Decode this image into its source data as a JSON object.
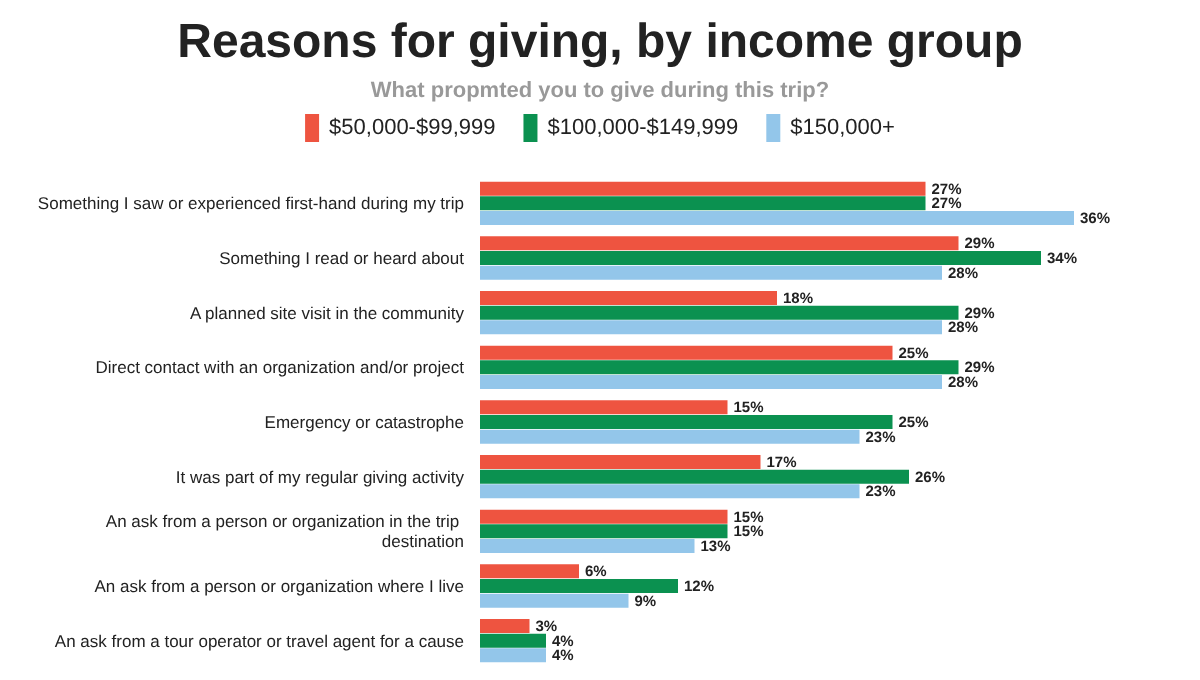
{
  "chart_data": {
    "type": "bar",
    "orientation": "horizontal",
    "title": "Reasons for giving, by income group",
    "subtitle": "What propmted you to give during this trip?",
    "legend": "top",
    "categories": [
      "Something I saw or experienced first-hand during my trip",
      "Something I read or heard about",
      "A planned site visit in the community",
      "Direct contact with an organization and/or project",
      "Emergency or catastrophe",
      "It was part of my regular giving activity",
      "An ask from a person or organization in the trip destination",
      "An ask from a person or organization where I live",
      "An ask from a tour operator or travel agent for a cause"
    ],
    "series": [
      {
        "name": "$50,000-$99,999",
        "color": "#ee5440",
        "values": [
          27,
          29,
          18,
          25,
          15,
          17,
          15,
          6,
          3
        ],
        "value_labels": [
          "27%",
          "29%",
          "18%",
          "25%",
          "15%",
          "17%",
          "15%",
          "6%",
          "3%"
        ]
      },
      {
        "name": "$100,000-$149,999",
        "color": "#0b9150",
        "values": [
          27,
          34,
          29,
          29,
          25,
          26,
          15,
          12,
          4
        ],
        "value_labels": [
          "27%",
          "34%",
          "29%",
          "29%",
          "25%",
          "26%",
          "15%",
          "12%",
          "4%"
        ]
      },
      {
        "name": "$150,000+",
        "color": "#93c6ea",
        "values": [
          36,
          28,
          28,
          28,
          23,
          23,
          13,
          9,
          4
        ],
        "value_labels": [
          "36%",
          "28%",
          "28%",
          "28%",
          "23%",
          "23%",
          "13%",
          "9%",
          "4%"
        ]
      }
    ]
  }
}
